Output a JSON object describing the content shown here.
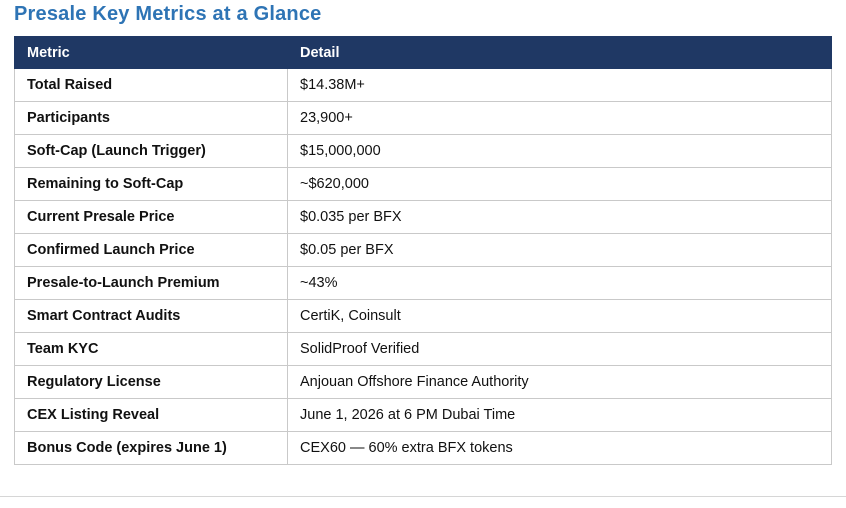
{
  "page": {
    "title": "Presale Key Metrics at a Glance"
  },
  "table": {
    "headers": {
      "metric": "Metric",
      "detail": "Detail"
    },
    "rows": [
      {
        "metric": "Total Raised",
        "detail": "$14.38M+"
      },
      {
        "metric": "Participants",
        "detail": "23,900+"
      },
      {
        "metric": "Soft-Cap (Launch Trigger)",
        "detail": "$15,000,000"
      },
      {
        "metric": "Remaining to Soft-Cap",
        "detail": "~$620,000"
      },
      {
        "metric": "Current Presale Price",
        "detail": "$0.035 per BFX"
      },
      {
        "metric": "Confirmed Launch Price",
        "detail": "$0.05 per BFX"
      },
      {
        "metric": "Presale-to-Launch Premium",
        "detail": "~43%"
      },
      {
        "metric": "Smart Contract Audits",
        "detail": "CertiK, Coinsult"
      },
      {
        "metric": "Team KYC",
        "detail": "SolidProof Verified"
      },
      {
        "metric": "Regulatory License",
        "detail": "Anjouan Offshore Finance Authority"
      },
      {
        "metric": "CEX Listing Reveal",
        "detail": "June 1, 2026 at 6 PM Dubai Time"
      },
      {
        "metric": "Bonus Code (expires June 1)",
        "detail": "CEX60 — 60% extra BFX tokens"
      }
    ]
  },
  "colors": {
    "title_blue": "#2E74B5",
    "header_navy": "#1F3864",
    "row_border": "#C9C9C9"
  }
}
